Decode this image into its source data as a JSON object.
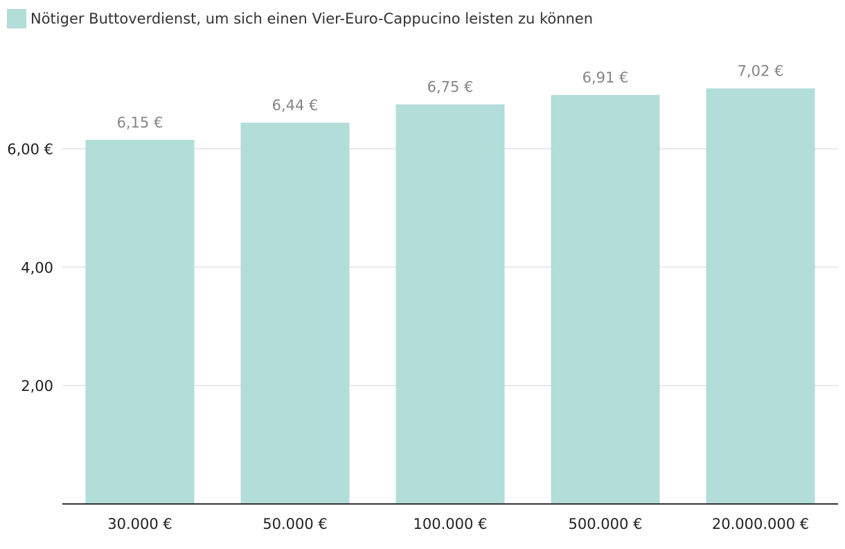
{
  "chart_data": {
    "type": "bar",
    "title": "",
    "legend": {
      "label": "Nötiger Buttoverdienst, um sich einen Vier-Euro-Cappucino leisten zu können",
      "placement": "top-left"
    },
    "categories": [
      "30.000 €",
      "50.000 €",
      "100.000 €",
      "500.000 €",
      "20.000.000 €"
    ],
    "values": [
      6.15,
      6.44,
      6.75,
      6.91,
      7.02
    ],
    "value_labels": [
      "6,15 €",
      "6,44 €",
      "6,75 €",
      "6,91 €",
      "7,02 €"
    ],
    "yticks": [
      {
        "value": 2,
        "label": "2,00"
      },
      {
        "value": 4,
        "label": "4,00"
      },
      {
        "value": 6,
        "label": "6,00 €"
      }
    ],
    "ylim": [
      0,
      8.1
    ],
    "xlabel": "",
    "ylabel": "",
    "grid": true,
    "colors": {
      "bar": "#b2ddd9",
      "grid": "#e2e2e2",
      "axis": "#333333",
      "value_label": "#858585",
      "tick_label": "#222222"
    }
  }
}
